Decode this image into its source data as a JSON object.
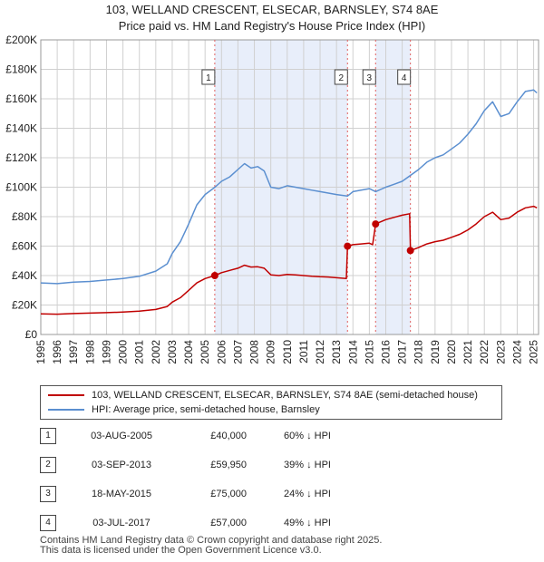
{
  "title_line1": "103, WELLAND CRESCENT, ELSECAR, BARNSLEY, S74 8AE",
  "title_line2": "Price paid vs. HM Land Registry's House Price Index (HPI)",
  "chart_data": {
    "type": "line",
    "title": "103, WELLAND CRESCENT, ELSECAR, BARNSLEY, S74 8AE — Price paid vs. HM Land Registry's House Price Index (HPI)",
    "xlim": [
      1995,
      2025.3
    ],
    "ylim": [
      0,
      200000
    ],
    "x_ticks": [
      1995,
      1996,
      1997,
      1998,
      1999,
      2000,
      2001,
      2002,
      2003,
      2004,
      2005,
      2006,
      2007,
      2008,
      2009,
      2010,
      2011,
      2012,
      2013,
      2014,
      2015,
      2016,
      2017,
      2018,
      2019,
      2020,
      2021,
      2022,
      2023,
      2024,
      2025
    ],
    "y_ticks": [
      0,
      20000,
      40000,
      60000,
      80000,
      100000,
      120000,
      140000,
      160000,
      180000,
      200000
    ],
    "y_tick_labels": [
      "£0",
      "£20K",
      "£40K",
      "£60K",
      "£80K",
      "£100K",
      "£120K",
      "£140K",
      "£160K",
      "£180K",
      "£200K"
    ],
    "grid": true,
    "series": [
      {
        "name": "HPI: Average price, semi-detached house, Barnsley",
        "color": "#5b8fd0",
        "points": [
          [
            1995,
            35000
          ],
          [
            1996,
            34500
          ],
          [
            1997,
            35500
          ],
          [
            1998,
            36000
          ],
          [
            1999,
            37000
          ],
          [
            2000,
            38000
          ],
          [
            2001,
            39500
          ],
          [
            2002,
            43000
          ],
          [
            2002.7,
            48000
          ],
          [
            2003,
            55000
          ],
          [
            2003.5,
            63000
          ],
          [
            2004,
            75000
          ],
          [
            2004.5,
            88000
          ],
          [
            2005,
            95000
          ],
          [
            2005.6,
            100000
          ],
          [
            2006,
            104000
          ],
          [
            2006.5,
            107000
          ],
          [
            2007,
            112000
          ],
          [
            2007.4,
            116000
          ],
          [
            2007.8,
            113000
          ],
          [
            2008.2,
            114000
          ],
          [
            2008.6,
            111000
          ],
          [
            2009,
            100000
          ],
          [
            2009.5,
            99000
          ],
          [
            2010,
            101000
          ],
          [
            2010.5,
            100000
          ],
          [
            2011,
            99000
          ],
          [
            2011.5,
            98000
          ],
          [
            2012,
            97000
          ],
          [
            2012.5,
            96000
          ],
          [
            2013,
            95000
          ],
          [
            2013.67,
            94000
          ],
          [
            2014,
            97000
          ],
          [
            2014.5,
            98000
          ],
          [
            2015,
            99000
          ],
          [
            2015.38,
            97000
          ],
          [
            2016,
            100000
          ],
          [
            2016.5,
            102000
          ],
          [
            2017,
            104000
          ],
          [
            2017.5,
            108000
          ],
          [
            2018,
            112000
          ],
          [
            2018.5,
            117000
          ],
          [
            2019,
            120000
          ],
          [
            2019.5,
            122000
          ],
          [
            2020,
            126000
          ],
          [
            2020.5,
            130000
          ],
          [
            2021,
            136000
          ],
          [
            2021.5,
            143000
          ],
          [
            2022,
            152000
          ],
          [
            2022.5,
            158000
          ],
          [
            2023,
            148000
          ],
          [
            2023.5,
            150000
          ],
          [
            2024,
            158000
          ],
          [
            2024.5,
            165000
          ],
          [
            2025,
            166000
          ],
          [
            2025.2,
            164000
          ]
        ]
      },
      {
        "name": "103, WELLAND CRESCENT, ELSECAR, BARNSLEY, S74 8AE (semi-detached house)",
        "color": "#c00000",
        "points": [
          [
            1995,
            14000
          ],
          [
            1996,
            13800
          ],
          [
            1997,
            14200
          ],
          [
            1998,
            14500
          ],
          [
            1999,
            14800
          ],
          [
            2000,
            15200
          ],
          [
            2001,
            15800
          ],
          [
            2002,
            17000
          ],
          [
            2002.7,
            19000
          ],
          [
            2003,
            22000
          ],
          [
            2003.5,
            25000
          ],
          [
            2004,
            30000
          ],
          [
            2004.5,
            35000
          ],
          [
            2005,
            38000
          ],
          [
            2005.59,
            40000
          ],
          [
            2006,
            42000
          ],
          [
            2006.5,
            43500
          ],
          [
            2007,
            45000
          ],
          [
            2007.4,
            47000
          ],
          [
            2007.8,
            45800
          ],
          [
            2008.2,
            46000
          ],
          [
            2008.6,
            45000
          ],
          [
            2009,
            40500
          ],
          [
            2009.5,
            40000
          ],
          [
            2010,
            40800
          ],
          [
            2010.5,
            40500
          ],
          [
            2011,
            40000
          ],
          [
            2011.5,
            39500
          ],
          [
            2012,
            39200
          ],
          [
            2012.5,
            39000
          ],
          [
            2013,
            38500
          ],
          [
            2013.6,
            38000
          ],
          [
            2013.67,
            59950
          ],
          [
            2014,
            61000
          ],
          [
            2014.5,
            61500
          ],
          [
            2015,
            62000
          ],
          [
            2015.2,
            61000
          ],
          [
            2015.38,
            75000
          ],
          [
            2016,
            78000
          ],
          [
            2016.5,
            79500
          ],
          [
            2017,
            81000
          ],
          [
            2017.45,
            82000
          ],
          [
            2017.5,
            57000
          ],
          [
            2018,
            59000
          ],
          [
            2018.5,
            61500
          ],
          [
            2019,
            63000
          ],
          [
            2019.5,
            64000
          ],
          [
            2020,
            66000
          ],
          [
            2020.5,
            68000
          ],
          [
            2021,
            71000
          ],
          [
            2021.5,
            75000
          ],
          [
            2022,
            80000
          ],
          [
            2022.5,
            83000
          ],
          [
            2023,
            78000
          ],
          [
            2023.5,
            79000
          ],
          [
            2024,
            83000
          ],
          [
            2024.5,
            86000
          ],
          [
            2025,
            87000
          ],
          [
            2025.2,
            86000
          ]
        ]
      }
    ],
    "sales": [
      {
        "num": "1",
        "x": 2005.59,
        "y": 40000
      },
      {
        "num": "2",
        "x": 2013.67,
        "y": 59950
      },
      {
        "num": "3",
        "x": 2015.38,
        "y": 75000
      },
      {
        "num": "4",
        "x": 2017.5,
        "y": 57000
      }
    ],
    "shaded_ranges": [
      [
        2005.59,
        2013.67
      ],
      [
        2015.38,
        2017.5
      ]
    ],
    "colors": {
      "shade": "#e8eefa",
      "grid": "#d0d0d0",
      "vline": "#e06060"
    }
  },
  "legend": {
    "red_label": "103, WELLAND CRESCENT, ELSECAR, BARNSLEY, S74 8AE (semi-detached house)",
    "blue_label": "HPI: Average price, semi-detached house, Barnsley"
  },
  "transactions": [
    {
      "num": "1",
      "date": "03-AUG-2005",
      "price": "£40,000",
      "hpi": "60% ↓ HPI"
    },
    {
      "num": "2",
      "date": "03-SEP-2013",
      "price": "£59,950",
      "hpi": "39% ↓ HPI"
    },
    {
      "num": "3",
      "date": "18-MAY-2015",
      "price": "£75,000",
      "hpi": "24% ↓ HPI"
    },
    {
      "num": "4",
      "date": "03-JUL-2017",
      "price": "£57,000",
      "hpi": "49% ↓ HPI"
    }
  ],
  "footer": {
    "line1": "Contains HM Land Registry data © Crown copyright and database right 2025.",
    "line2": "This data is licensed under the Open Government Licence v3.0."
  }
}
